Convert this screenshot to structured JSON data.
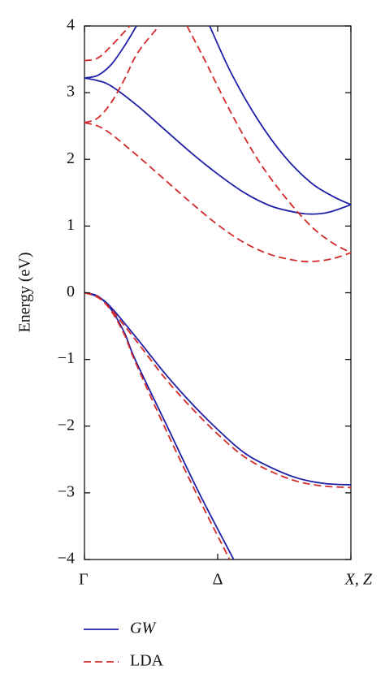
{
  "chart_data": {
    "type": "line",
    "y_label": "Energy (eV)",
    "xlim": [
      0,
      1
    ],
    "xticks": [
      {
        "value": 0,
        "label": "Γ"
      },
      {
        "value": 0.5,
        "label": "Δ"
      },
      {
        "value": 1,
        "label": "X, Z"
      }
    ],
    "ylim": [
      -4,
      4
    ],
    "yticks": [
      {
        "value": -4,
        "label": "−4"
      },
      {
        "value": -3,
        "label": "−3"
      },
      {
        "value": -2,
        "label": "−2"
      },
      {
        "value": -1,
        "label": "−1"
      },
      0,
      1,
      2,
      3,
      4
    ],
    "series": [
      {
        "name": "GW",
        "color": "#1f1fa8",
        "dashed": false,
        "lines": [
          {
            "x": [
              0,
              0.05,
              0.1,
              0.15,
              0.19,
              0.31,
              0.43,
              0.56
            ],
            "values": [
              0,
              -0.05,
              -0.25,
              -0.6,
              -1,
              -2,
              -3,
              -4
            ]
          },
          {
            "x": [
              0,
              0.05,
              0.1,
              0.2,
              0.3,
              0.4,
              0.5,
              0.6,
              0.7,
              0.8,
              0.9,
              1
            ],
            "values": [
              0,
              -0.06,
              -0.22,
              -0.7,
              -1.2,
              -1.65,
              -2.05,
              -2.4,
              -2.62,
              -2.78,
              -2.86,
              -2.88
            ]
          },
          {
            "x": [
              0,
              0.05,
              0.1,
              0.2,
              0.3,
              0.4,
              0.5,
              0.6,
              0.7,
              0.8,
              0.86,
              0.92,
              1
            ],
            "values": [
              3.22,
              3.18,
              3.1,
              2.8,
              2.45,
              2.1,
              1.78,
              1.5,
              1.3,
              1.2,
              1.18,
              1.21,
              1.32
            ]
          },
          {
            "x": [
              0,
              0.05,
              0.1,
              0.15,
              0.195
            ],
            "values": [
              3.22,
              3.26,
              3.42,
              3.7,
              4
            ]
          },
          {
            "x": [
              0.47,
              0.55,
              0.65,
              0.75,
              0.85,
              0.93,
              1
            ],
            "values": [
              4,
              3.3,
              2.6,
              2.05,
              1.65,
              1.45,
              1.32
            ]
          }
        ]
      },
      {
        "name": "LDA",
        "color": "#d42a2a",
        "dashed": true,
        "lines": [
          {
            "x": [
              0,
              0.05,
              0.1,
              0.15,
              0.19,
              0.305,
              0.425,
              0.545
            ],
            "values": [
              0,
              -0.06,
              -0.27,
              -0.63,
              -1.03,
              -2.05,
              -3.05,
              -4
            ]
          },
          {
            "x": [
              0,
              0.05,
              0.1,
              0.2,
              0.3,
              0.4,
              0.5,
              0.6,
              0.7,
              0.8,
              0.9,
              1
            ],
            "values": [
              0,
              -0.07,
              -0.25,
              -0.75,
              -1.27,
              -1.72,
              -2.12,
              -2.46,
              -2.68,
              -2.83,
              -2.9,
              -2.92
            ]
          },
          {
            "x": [
              0,
              0.05,
              0.1,
              0.2,
              0.3,
              0.4,
              0.5,
              0.6,
              0.7,
              0.8,
              0.86,
              0.93,
              1
            ],
            "values": [
              2.55,
              2.5,
              2.38,
              2.05,
              1.7,
              1.35,
              1.02,
              0.75,
              0.57,
              0.48,
              0.47,
              0.51,
              0.6
            ]
          },
          {
            "x": [
              0,
              0.05,
              0.1,
              0.15,
              0.2,
              0.28
            ],
            "values": [
              2.55,
              2.62,
              2.85,
              3.2,
              3.6,
              4
            ]
          },
          {
            "x": [
              0.385,
              0.45,
              0.55,
              0.65,
              0.75,
              0.85,
              0.93,
              1
            ],
            "values": [
              4,
              3.5,
              2.7,
              2,
              1.45,
              1,
              0.75,
              0.6
            ]
          },
          {
            "x": [
              0,
              0.05,
              0.1,
              0.17
            ],
            "values": [
              3.48,
              3.52,
              3.7,
              4
            ]
          }
        ]
      }
    ]
  }
}
